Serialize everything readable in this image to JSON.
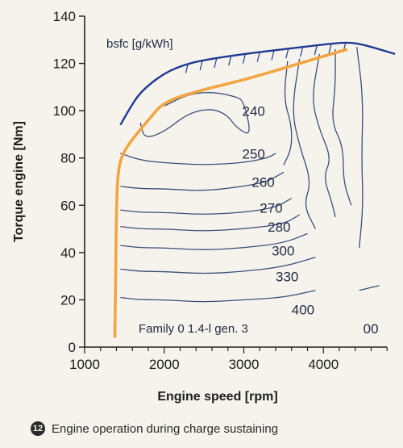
{
  "chart_data": {
    "type": "line",
    "title": "",
    "xlabel": "Engine speed [rpm]",
    "ylabel": "Torque engine [Nm]",
    "xlim": [
      1000,
      5000
    ],
    "ylim": [
      0,
      140
    ],
    "x_ticks": [
      1000,
      2000,
      3000,
      4000
    ],
    "y_ticks": [
      0,
      20,
      40,
      60,
      80,
      100,
      120,
      140
    ],
    "grid": false,
    "annotations": {
      "map_label": "bsfc [g/kWh]",
      "engine_label": "Family 0 1.4-l gen. 3"
    },
    "max_torque_curve": {
      "color": "#1f3a93",
      "x": [
        1450,
        1550,
        1700,
        2000,
        2300,
        2600,
        3000,
        3500,
        4000,
        4300,
        4500,
        4900
      ],
      "y": [
        94,
        100,
        108,
        116,
        120,
        122,
        124,
        126,
        128,
        129,
        128,
        124
      ]
    },
    "operating_line": {
      "color": "#f2a540",
      "x": [
        1380,
        1390,
        1400,
        1420,
        1480,
        1600,
        1800,
        2000,
        2500,
        3000,
        3500,
        4000,
        4300
      ],
      "y": [
        4,
        30,
        60,
        75,
        82,
        88,
        96,
        104,
        109,
        113,
        118,
        123,
        126
      ]
    },
    "bsfc_contours": [
      {
        "value": "240",
        "x": [
          1700,
          1750,
          2000,
          2300,
          2600,
          2800,
          2900,
          3100,
          3000,
          2900,
          2600,
          2300,
          2000
        ],
        "y": [
          95,
          88,
          91,
          99,
          101,
          98,
          93,
          89,
          104,
          106,
          108,
          107,
          102
        ]
      },
      {
        "value": "250",
        "x": [
          1450,
          1700,
          2000,
          2500,
          3000,
          3300,
          3400
        ],
        "y": [
          82,
          79,
          78,
          77,
          78,
          80,
          82
        ]
      },
      {
        "value": "260",
        "x": [
          1450,
          1700,
          2000,
          2500,
          3000,
          3300,
          3500
        ],
        "y": [
          68,
          67,
          67,
          66,
          68,
          70,
          74
        ]
      },
      {
        "value": "270",
        "x": [
          1450,
          1700,
          2000,
          2500,
          3000,
          3400,
          3600
        ],
        "y": [
          58,
          57,
          57,
          56,
          57,
          59,
          63
        ]
      },
      {
        "value": "280",
        "x": [
          1450,
          1700,
          2000,
          2500,
          3000,
          3500,
          3700
        ],
        "y": [
          51,
          50,
          50,
          49,
          50,
          52,
          56
        ]
      },
      {
        "value": "300",
        "x": [
          1450,
          1700,
          2000,
          2500,
          3000,
          3500,
          3800
        ],
        "y": [
          43,
          42,
          42,
          41,
          42,
          44,
          48
        ]
      },
      {
        "value": "330",
        "x": [
          1450,
          1700,
          2000,
          2500,
          3000,
          3500,
          3900
        ],
        "y": [
          33,
          32,
          32,
          31,
          32,
          34,
          38
        ]
      },
      {
        "value": "400",
        "x": [
          1450,
          1700,
          2000,
          2500,
          3000,
          3500,
          3900
        ],
        "y": [
          21,
          20,
          20,
          19,
          20,
          21,
          24
        ]
      },
      {
        "value": "00",
        "x": [
          4450,
          4700
        ],
        "y": [
          24,
          26
        ]
      }
    ],
    "contour_color": "#3a4f7a"
  },
  "caption": {
    "number": "12",
    "text": "Engine operation during charge sustaining"
  }
}
